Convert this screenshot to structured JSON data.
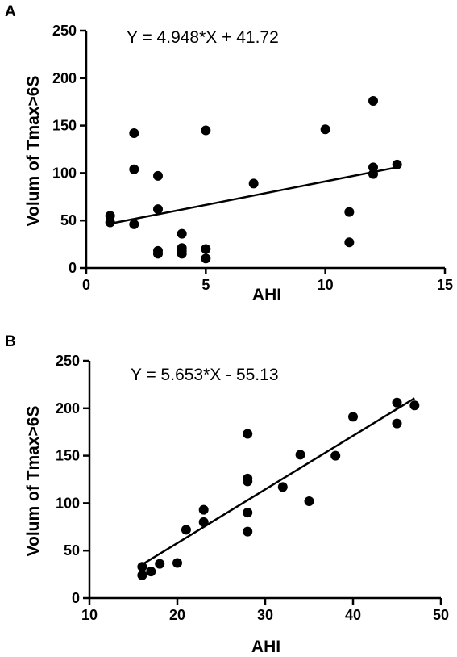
{
  "chart_data": [
    {
      "type": "scatter",
      "panel_label": "A",
      "equation": "Y = 4.948*X + 41.72",
      "xlabel": "AHI",
      "ylabel": "Volum of Tmax>6S",
      "xlim": [
        0,
        15
      ],
      "ylim": [
        0,
        250
      ],
      "xticks": [
        0,
        5,
        10,
        15
      ],
      "yticks": [
        0,
        50,
        100,
        150,
        200,
        250
      ],
      "grid": false,
      "regression": {
        "slope": 4.948,
        "intercept": 41.72,
        "x_range": [
          1,
          13
        ]
      },
      "points": [
        {
          "x": 1,
          "y": 55
        },
        {
          "x": 1,
          "y": 48
        },
        {
          "x": 2,
          "y": 142
        },
        {
          "x": 2,
          "y": 104
        },
        {
          "x": 2,
          "y": 46
        },
        {
          "x": 3,
          "y": 97
        },
        {
          "x": 3,
          "y": 62
        },
        {
          "x": 3,
          "y": 18
        },
        {
          "x": 3,
          "y": 15
        },
        {
          "x": 4,
          "y": 36
        },
        {
          "x": 4,
          "y": 21
        },
        {
          "x": 4,
          "y": 18
        },
        {
          "x": 4,
          "y": 15
        },
        {
          "x": 5,
          "y": 145
        },
        {
          "x": 5,
          "y": 20
        },
        {
          "x": 5,
          "y": 10
        },
        {
          "x": 7,
          "y": 89
        },
        {
          "x": 10,
          "y": 146
        },
        {
          "x": 11,
          "y": 59
        },
        {
          "x": 11,
          "y": 27
        },
        {
          "x": 12,
          "y": 176
        },
        {
          "x": 12,
          "y": 106
        },
        {
          "x": 12,
          "y": 99
        },
        {
          "x": 13,
          "y": 109
        }
      ]
    },
    {
      "type": "scatter",
      "panel_label": "B",
      "equation": "Y = 5.653*X - 55.13",
      "xlabel": "AHI",
      "ylabel": "Volum of Tmax>6S",
      "xlim": [
        10,
        50
      ],
      "ylim": [
        0,
        250
      ],
      "xticks": [
        10,
        20,
        30,
        40,
        50
      ],
      "yticks": [
        0,
        50,
        100,
        150,
        200,
        250
      ],
      "grid": false,
      "regression": {
        "slope": 5.653,
        "intercept": -55.13,
        "x_range": [
          16,
          47
        ]
      },
      "points": [
        {
          "x": 16,
          "y": 33
        },
        {
          "x": 16,
          "y": 24
        },
        {
          "x": 17,
          "y": 28
        },
        {
          "x": 18,
          "y": 36
        },
        {
          "x": 20,
          "y": 37
        },
        {
          "x": 21,
          "y": 72
        },
        {
          "x": 23,
          "y": 93
        },
        {
          "x": 23,
          "y": 80
        },
        {
          "x": 28,
          "y": 173
        },
        {
          "x": 28,
          "y": 126
        },
        {
          "x": 28,
          "y": 123
        },
        {
          "x": 28,
          "y": 90
        },
        {
          "x": 28,
          "y": 70
        },
        {
          "x": 32,
          "y": 117
        },
        {
          "x": 34,
          "y": 151
        },
        {
          "x": 35,
          "y": 102
        },
        {
          "x": 38,
          "y": 150
        },
        {
          "x": 40,
          "y": 191
        },
        {
          "x": 45,
          "y": 206
        },
        {
          "x": 45,
          "y": 184
        },
        {
          "x": 47,
          "y": 203
        }
      ]
    }
  ]
}
